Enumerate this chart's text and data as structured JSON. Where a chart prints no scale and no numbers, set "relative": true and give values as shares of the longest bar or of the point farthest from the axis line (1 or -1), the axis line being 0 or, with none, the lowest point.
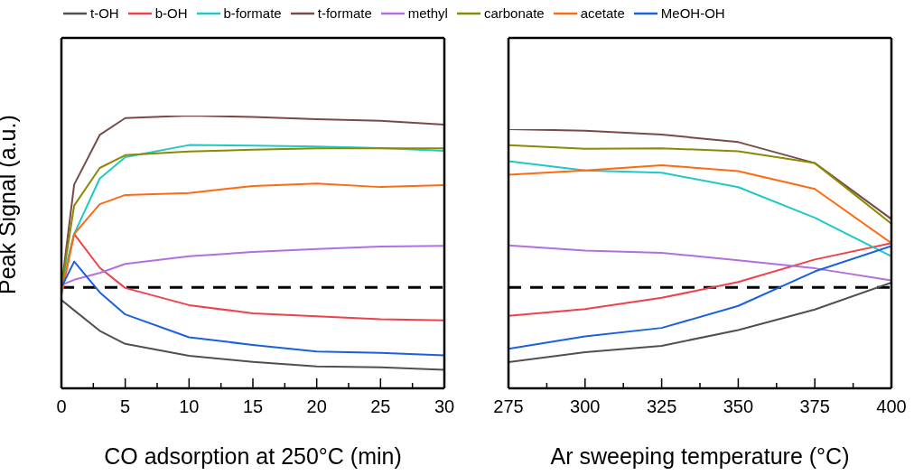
{
  "chart_data": [
    {
      "type": "line",
      "ylabel": "Peak Signal (a.u.)",
      "xlabel": "CO adsorption at 250°C (min)",
      "relative": true,
      "legend": "top",
      "tick_labels": "x",
      "marker": "none",
      "line_style": "solid",
      "xlim": [
        0,
        30
      ],
      "xticks": [
        0,
        {
          "value": 2.5,
          "label": null
        },
        5,
        {
          "value": 7.5,
          "label": null
        },
        10,
        {
          "value": 12.5,
          "label": null
        },
        15,
        {
          "value": 17.5,
          "label": null
        },
        20,
        {
          "value": 22.5,
          "label": null
        },
        25,
        {
          "value": 27.5,
          "label": null
        },
        30
      ],
      "x": [
        0,
        1,
        3,
        5,
        10,
        15,
        20,
        25,
        30
      ],
      "ref_lines": [
        {
          "axis": "y",
          "value": 0.37,
          "color": "#000000",
          "line_style": "dashed"
        }
      ],
      "series": [
        {
          "name": "t-OH",
          "color": "#505050",
          "values": [
            0.324,
            0.286,
            0.211,
            0.163,
            0.119,
            0.097,
            0.08,
            0.077,
            0.068
          ]
        },
        {
          "name": "b-OH",
          "color": "#f0404a",
          "values": [
            0.37,
            0.566,
            0.442,
            0.368,
            0.305,
            0.275,
            0.264,
            0.253,
            0.249
          ]
        },
        {
          "name": "b-formate",
          "color": "#20c8c8",
          "values": [
            0.379,
            0.566,
            0.769,
            0.848,
            0.892,
            0.89,
            0.887,
            0.881,
            0.871
          ]
        },
        {
          "name": "t-formate",
          "color": "#7a4a4a",
          "values": [
            0.37,
            0.747,
            0.929,
            0.991,
            1.0,
            0.995,
            0.987,
            0.981,
            0.967
          ]
        },
        {
          "name": "methyl",
          "color": "#b070e0",
          "values": [
            0.379,
            0.398,
            0.423,
            0.456,
            0.484,
            0.5,
            0.511,
            0.52,
            0.522
          ]
        },
        {
          "name": "carbonate",
          "color": "#8a8a00",
          "values": [
            0.37,
            0.67,
            0.808,
            0.855,
            0.868,
            0.875,
            0.88,
            0.88,
            0.88
          ]
        },
        {
          "name": "acetate",
          "color": "#ff6a10",
          "values": [
            0.341,
            0.566,
            0.675,
            0.709,
            0.716,
            0.742,
            0.751,
            0.738,
            0.745
          ]
        },
        {
          "name": "MeOH-OH",
          "color": "#1a60e0",
          "values": [
            0.37,
            0.465,
            0.352,
            0.271,
            0.187,
            0.159,
            0.135,
            0.13,
            0.121
          ]
        }
      ]
    },
    {
      "type": "line",
      "xlabel": "Ar sweeping temperature (°C)",
      "relative": true,
      "tick_labels": "x",
      "marker": "none",
      "line_style": "solid",
      "xlim": [
        275,
        400
      ],
      "xticks": [
        275,
        {
          "value": 287.5,
          "label": null
        },
        300,
        {
          "value": 312.5,
          "label": null
        },
        325,
        {
          "value": 337.5,
          "label": null
        },
        350,
        {
          "value": 362.5,
          "label": null
        },
        375,
        {
          "value": 387.5,
          "label": null
        },
        400
      ],
      "x": [
        275,
        300,
        325,
        350,
        375,
        400
      ],
      "ref_lines": [
        {
          "axis": "y",
          "value": 0.389,
          "color": "#000000",
          "line_style": "dashed"
        }
      ],
      "series": [
        {
          "color": "#505050",
          "values": [
            0.101,
            0.139,
            0.164,
            0.225,
            0.304,
            0.408
          ]
        },
        {
          "color": "#f0404a",
          "values": [
            0.28,
            0.306,
            0.349,
            0.41,
            0.497,
            0.56
          ]
        },
        {
          "color": "#20c8c8",
          "values": [
            0.876,
            0.841,
            0.832,
            0.776,
            0.658,
            0.509
          ]
        },
        {
          "color": "#7a4a4a",
          "values": [
            1.0,
            0.994,
            0.979,
            0.95,
            0.869,
            0.653
          ]
        },
        {
          "color": "#b070e0",
          "values": [
            0.551,
            0.531,
            0.523,
            0.494,
            0.463,
            0.416
          ]
        },
        {
          "color": "#8a8a00",
          "values": [
            0.938,
            0.924,
            0.926,
            0.915,
            0.869,
            0.635
          ]
        },
        {
          "color": "#ff6a10",
          "values": [
            0.824,
            0.841,
            0.861,
            0.838,
            0.769,
            0.56
          ]
        },
        {
          "color": "#1a60e0",
          "values": [
            0.152,
            0.2,
            0.233,
            0.318,
            0.451,
            0.549
          ]
        }
      ]
    }
  ]
}
